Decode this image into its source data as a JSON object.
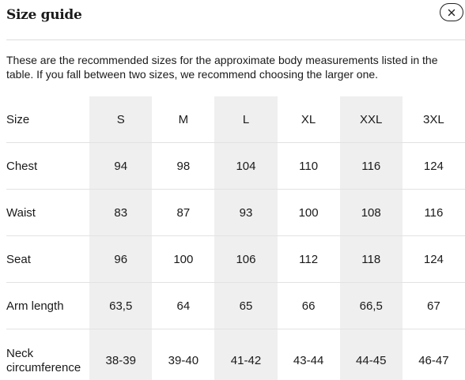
{
  "dialog": {
    "title": "Size guide",
    "close_icon": "close-icon",
    "intro": "These are the recommended sizes for the approximate body measurements listed in the table. If you fall between two sizes, we recommend choosing the larger one."
  },
  "table": {
    "header": {
      "label": "Size",
      "sizes": [
        "S",
        "M",
        "L",
        "XL",
        "XXL",
        "3XL"
      ]
    },
    "rows": [
      {
        "label": "Chest",
        "values": [
          "94",
          "98",
          "104",
          "110",
          "116",
          "124"
        ]
      },
      {
        "label": "Waist",
        "values": [
          "83",
          "87",
          "93",
          "100",
          "108",
          "116"
        ]
      },
      {
        "label": "Seat",
        "values": [
          "96",
          "100",
          "106",
          "112",
          "118",
          "124"
        ]
      },
      {
        "label": "Arm length",
        "values": [
          "63,5",
          "64",
          "65",
          "66",
          "66,5",
          "67"
        ]
      },
      {
        "label": "Neck circumference",
        "values": [
          "38-39",
          "39-40",
          "41-42",
          "43-44",
          "44-45",
          "46-47"
        ]
      }
    ]
  },
  "colors": {
    "shaded_column": "#efefef",
    "divider": "#dddddd",
    "text": "#1a1a1a"
  }
}
